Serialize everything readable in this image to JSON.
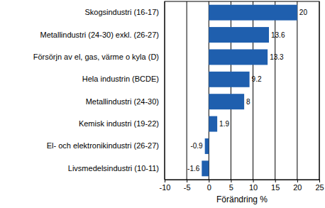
{
  "chart_data": {
    "type": "bar",
    "orientation": "horizontal",
    "categories": [
      "Skogsindustri (16-17)",
      "Metallindustri (24-30) exkl. (26-27)",
      "Försörjn av el, gas, värme o kyla (D)",
      "Hela industrin (BCDE)",
      "Metallindustri (24-30)",
      "Kemisk industri (19-22)",
      "El- och elektronikindustri (26-27)",
      "Livsmedelsindustri (10-11)"
    ],
    "values": [
      20,
      13.6,
      13.3,
      9.2,
      8,
      1.9,
      -0.9,
      -1.6
    ],
    "color": "#1f5fae",
    "x_label": "Förändring %",
    "xlim": [
      -10,
      25
    ],
    "xticks": [
      -10,
      -5,
      0,
      5,
      10,
      15,
      20,
      25
    ],
    "grid": true,
    "data_labels": true
  }
}
